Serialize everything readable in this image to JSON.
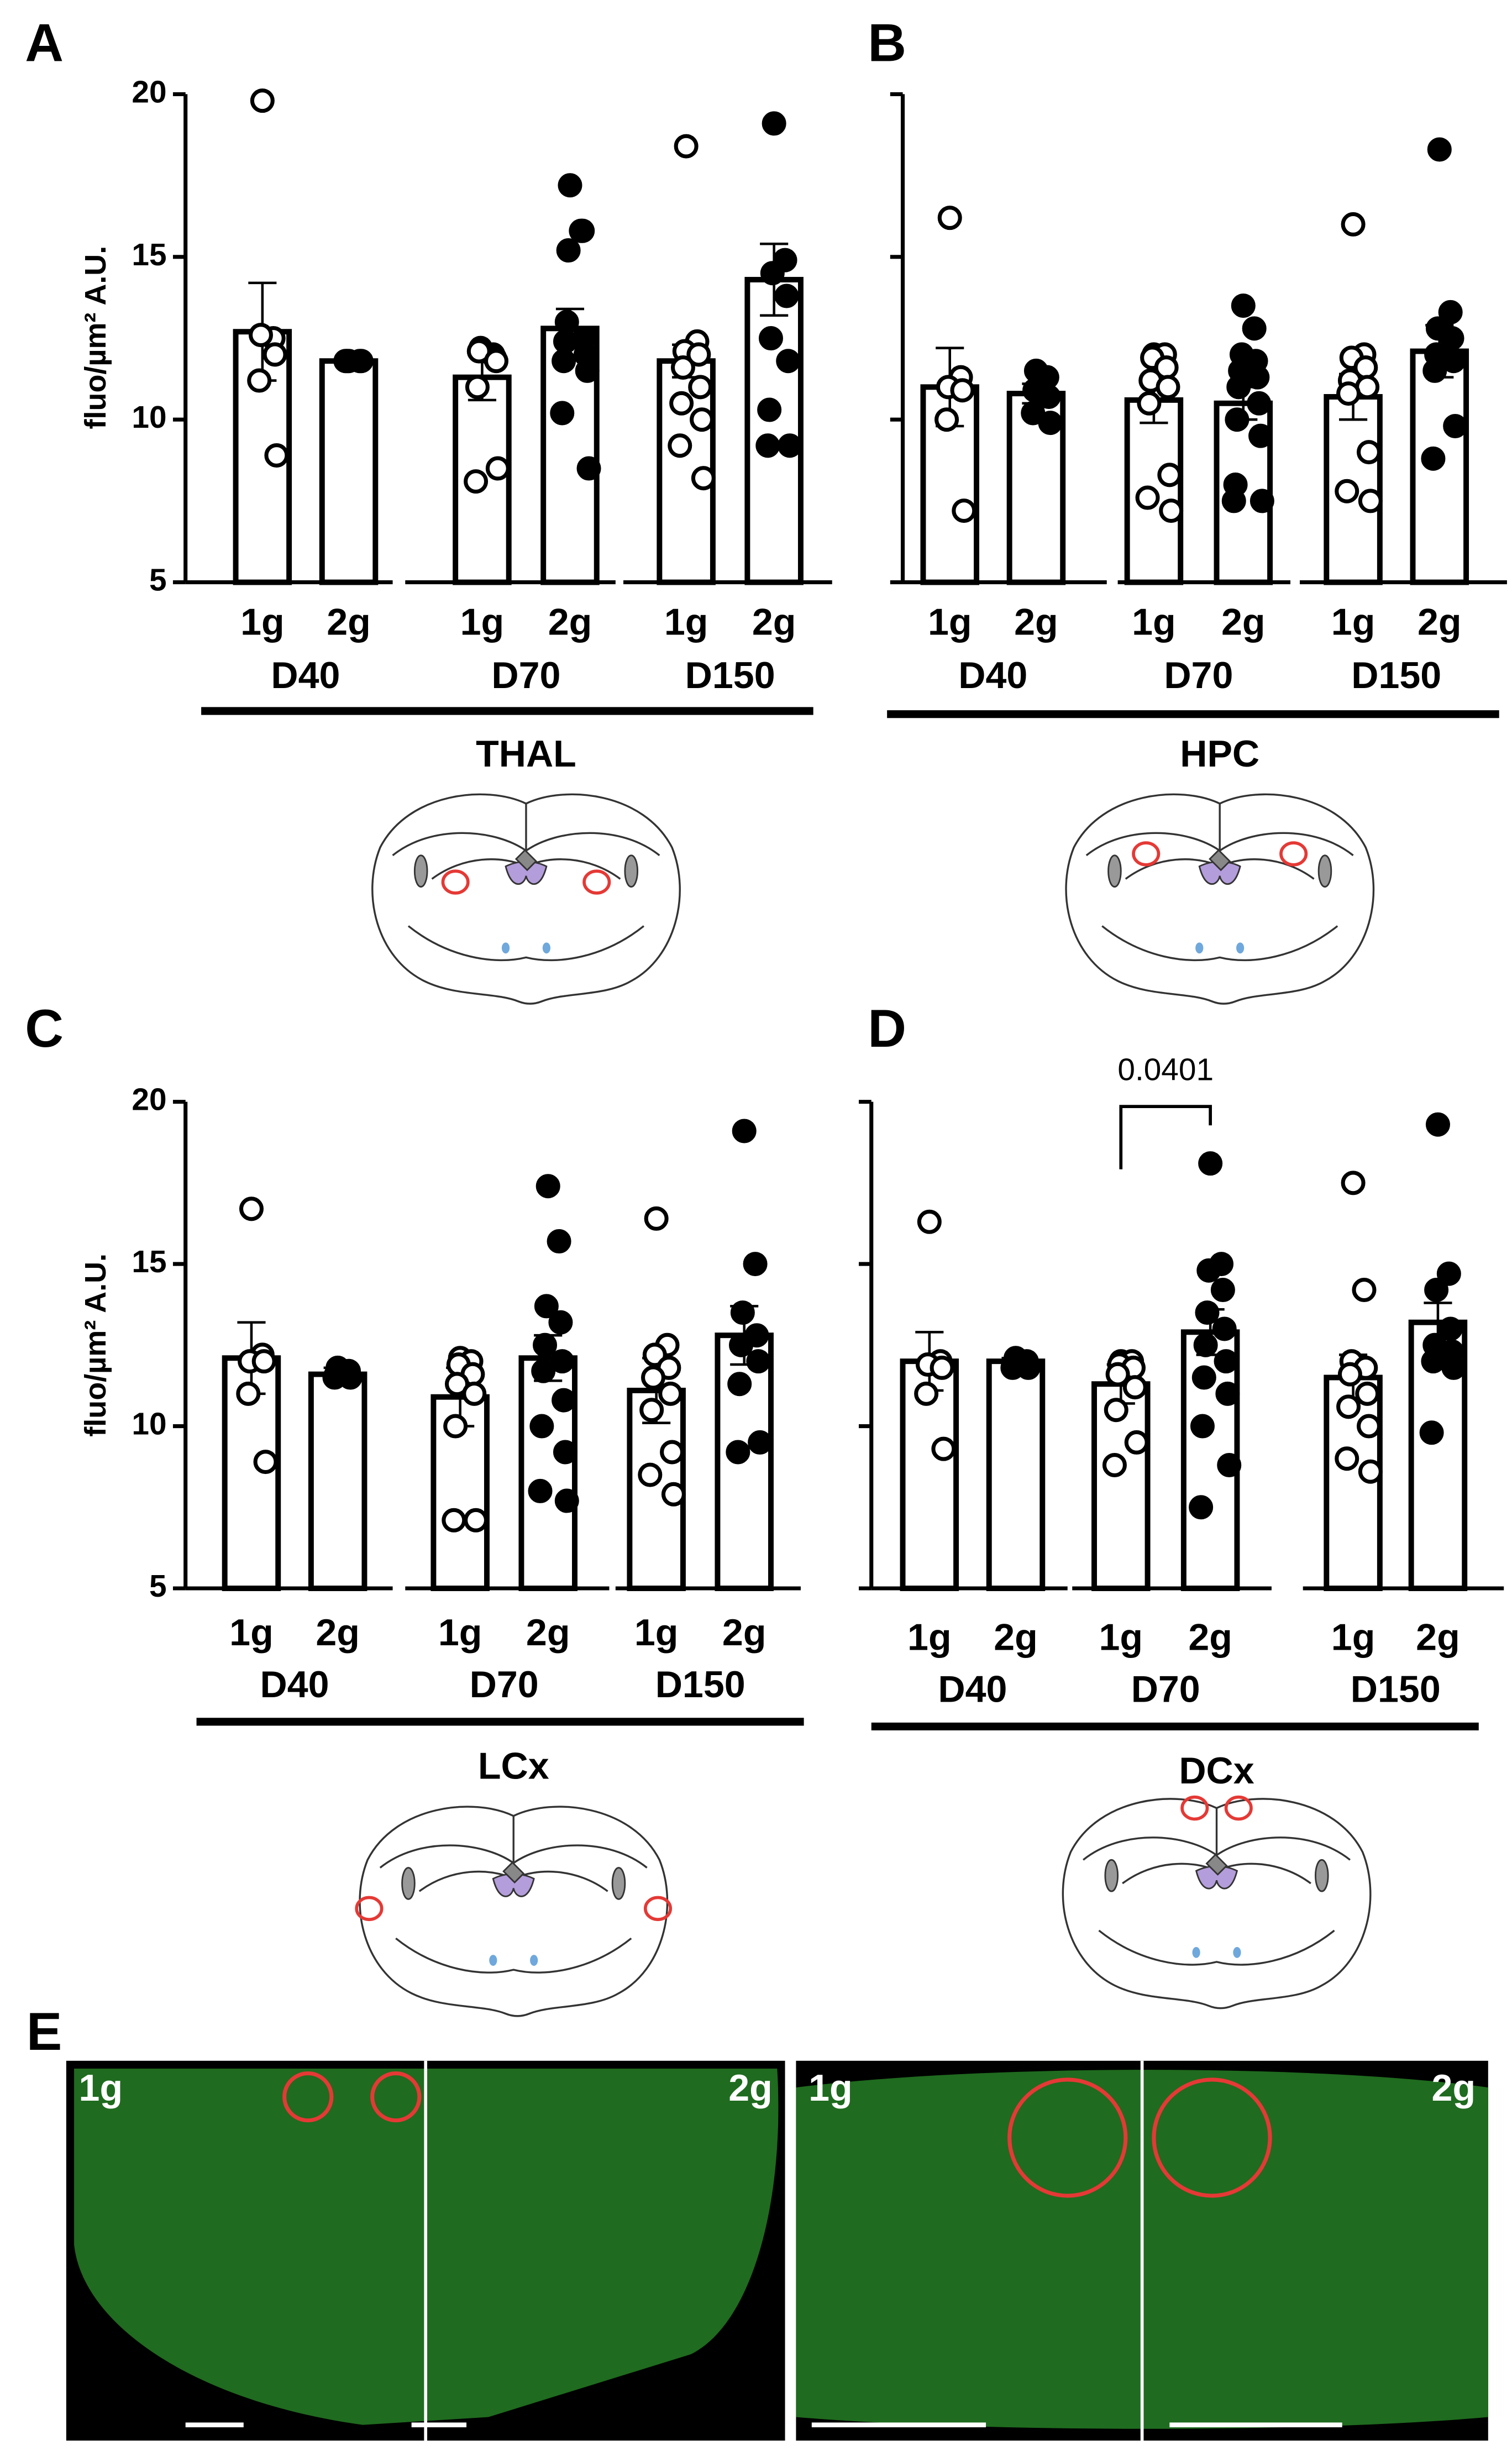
{
  "chart_data": [
    {
      "type": "bar",
      "panel": "A",
      "region": "THAL",
      "ylabel": "fluo/µm² A.U.",
      "categories": [
        "1g",
        "2g",
        "1g",
        "2g",
        "1g",
        "2g"
      ],
      "groups": [
        "D40",
        "D70",
        "D150"
      ],
      "values": [
        12.7,
        11.8,
        11.3,
        12.8,
        11.8,
        14.3
      ],
      "errors": [
        1.5,
        0.1,
        0.7,
        0.6,
        0.5,
        1.1
      ],
      "points": [
        [
          19.8,
          12.5,
          12.6,
          12.0,
          11.2,
          8.9
        ],
        [
          11.8,
          11.8,
          11.8,
          11.8,
          11.8
        ],
        [
          12.1,
          12.0,
          12.2,
          11.9,
          12.1,
          11.8,
          11.0,
          8.5,
          8.1
        ],
        [
          17.2,
          15.8,
          15.2,
          15.8,
          13.0,
          12.5,
          12.4,
          12.0,
          11.8,
          11.5,
          10.2,
          8.5
        ],
        [
          18.4,
          12.4,
          12.1,
          12.0,
          11.6,
          11.0,
          10.5,
          10.0,
          9.2,
          8.2
        ],
        [
          19.1,
          14.9,
          14.5,
          13.8,
          12.5,
          11.8,
          10.3,
          9.2,
          9.2
        ]
      ],
      "marker_colors": [
        "#ffffff",
        "#000000",
        "#ffffff",
        "#000000",
        "#ffffff",
        "#000000"
      ],
      "ylim": [
        5,
        20
      ],
      "yticks": [
        5,
        10,
        15,
        20
      ],
      "show_tick_labels": true
    },
    {
      "type": "bar",
      "panel": "B",
      "region": "HPC",
      "categories": [
        "1g",
        "2g",
        "1g",
        "2g",
        "1g",
        "2g"
      ],
      "groups": [
        "D40",
        "D70",
        "D150"
      ],
      "values": [
        11.0,
        10.8,
        10.6,
        10.5,
        10.7,
        12.1
      ],
      "errors": [
        1.2,
        0.3,
        0.7,
        0.5,
        0.7,
        0.8
      ],
      "points": [
        [
          16.2,
          11.3,
          11.0,
          10.9,
          10.0,
          7.2
        ],
        [
          11.5,
          11.3,
          10.9,
          10.7,
          10.2,
          9.9
        ],
        [
          12.0,
          12.0,
          11.9,
          11.6,
          11.2,
          11.0,
          10.5,
          8.3,
          7.6,
          7.2
        ],
        [
          13.5,
          12.8,
          12.0,
          11.8,
          11.5,
          11.3,
          11.0,
          10.5,
          10.0,
          9.5,
          8.0,
          7.5,
          7.5
        ],
        [
          16.0,
          12.0,
          11.9,
          11.6,
          11.2,
          11.0,
          10.8,
          9.0,
          7.8,
          7.5
        ],
        [
          18.3,
          13.3,
          12.8,
          12.5,
          12.0,
          11.8,
          11.5,
          9.8,
          8.8
        ]
      ],
      "marker_colors": [
        "#ffffff",
        "#000000",
        "#ffffff",
        "#000000",
        "#ffffff",
        "#000000"
      ],
      "ylim": [
        5,
        20
      ],
      "yticks": [
        5,
        10,
        15,
        20
      ],
      "show_tick_labels": false
    },
    {
      "type": "bar",
      "panel": "C",
      "region": "LCx",
      "ylabel": "fluo/µm² A.U.",
      "categories": [
        "1g",
        "2g",
        "1g",
        "2g",
        "1g",
        "2g"
      ],
      "groups": [
        "D40",
        "D70",
        "D150"
      ],
      "values": [
        12.1,
        11.6,
        10.9,
        12.1,
        11.1,
        12.8
      ],
      "errors": [
        1.1,
        0.2,
        0.9,
        0.7,
        1.0,
        0.9
      ],
      "points": [
        [
          16.7,
          12.2,
          12.0,
          12.0,
          11.0,
          8.9
        ],
        [
          11.8,
          11.7,
          11.6,
          11.5,
          11.5
        ],
        [
          12.1,
          12.0,
          11.9,
          11.6,
          11.3,
          11.0,
          10.0,
          7.1,
          7.1
        ],
        [
          17.4,
          15.7,
          13.7,
          13.2,
          12.5,
          12.0,
          11.7,
          10.8,
          10.0,
          9.2,
          8.0,
          7.7
        ],
        [
          16.4,
          12.5,
          12.2,
          11.8,
          11.5,
          11.0,
          10.5,
          9.2,
          8.5,
          7.9
        ],
        [
          19.1,
          15.0,
          13.5,
          12.8,
          12.5,
          12.0,
          11.3,
          9.5,
          9.2
        ]
      ],
      "marker_colors": [
        "#ffffff",
        "#000000",
        "#ffffff",
        "#000000",
        "#ffffff",
        "#000000"
      ],
      "ylim": [
        5,
        20
      ],
      "yticks": [
        5,
        10,
        15,
        20
      ],
      "show_tick_labels": true
    },
    {
      "type": "bar",
      "panel": "D",
      "region": "DCx",
      "categories": [
        "1g",
        "2g",
        "1g",
        "2g",
        "1g",
        "2g"
      ],
      "groups": [
        "D40",
        "D70",
        "D150"
      ],
      "values": [
        12.0,
        12.0,
        11.3,
        12.9,
        11.5,
        13.2
      ],
      "errors": [
        0.9,
        0.1,
        0.6,
        0.7,
        0.7,
        0.6
      ],
      "points": [
        [
          16.3,
          12.0,
          11.9,
          11.8,
          11.0,
          9.3
        ],
        [
          12.1,
          12.0,
          11.9,
          11.8,
          11.8
        ],
        [
          12.0,
          12.0,
          11.9,
          11.8,
          11.6,
          11.2,
          10.5,
          9.5,
          8.8
        ],
        [
          18.1,
          15.0,
          14.8,
          14.2,
          13.5,
          13.0,
          12.5,
          12.0,
          11.5,
          11.0,
          10.0,
          8.8,
          7.5
        ],
        [
          17.5,
          14.2,
          12.0,
          11.8,
          11.6,
          11.0,
          10.6,
          10.0,
          9.0,
          8.6
        ],
        [
          19.3,
          14.7,
          14.2,
          13.0,
          12.5,
          12.3,
          12.0,
          11.8,
          9.8
        ]
      ],
      "marker_colors": [
        "#ffffff",
        "#000000",
        "#ffffff",
        "#000000",
        "#ffffff",
        "#000000"
      ],
      "ylim": [
        5,
        20
      ],
      "yticks": [
        5,
        10,
        15,
        20
      ],
      "show_tick_labels": false,
      "annotation": {
        "text": "0.0401"
      }
    }
  ],
  "image_panel": {
    "label": "E",
    "images": [
      {
        "left": "1g",
        "right": "2g"
      },
      {
        "left": "1g",
        "right": "2g"
      }
    ]
  }
}
